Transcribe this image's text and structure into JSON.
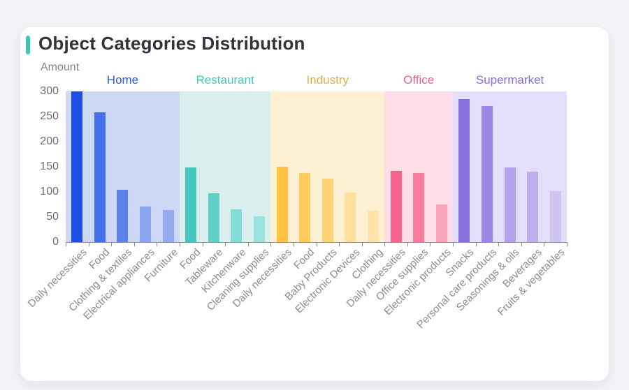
{
  "header": {
    "title": "Object Categories Distribution",
    "accent_color": "#3ec6bc"
  },
  "page": {
    "background_color": "#f2f3f6",
    "card_color": "#ffffff"
  },
  "chart_data": {
    "type": "bar",
    "title": "Object Categories Distribution",
    "xlabel": "",
    "ylabel": "Amount",
    "ylim": [
      0,
      300
    ],
    "yticks": [
      0,
      50,
      100,
      150,
      200,
      250,
      300
    ],
    "grid": false,
    "legend_position": "none",
    "axis_color": "#8f8f8f",
    "groups": [
      {
        "name": "Home",
        "label_color": "#3355e0",
        "band_color": "#ccd8f4",
        "bars": [
          {
            "label": "Daily necessities",
            "value": 300,
            "color": "#1d4fe3"
          },
          {
            "label": "Food",
            "value": 258,
            "color": "#4170e8"
          },
          {
            "label": "Clothing & textiles",
            "value": 104,
            "color": "#5b82ea"
          },
          {
            "label": "Electrical appliances",
            "value": 71,
            "color": "#8ba4f0"
          },
          {
            "label": "Furniture",
            "value": 64,
            "color": "#93aaf1"
          }
        ]
      },
      {
        "name": "Restaurant",
        "label_color": "#45c8ba",
        "band_color": "#d9f0ee",
        "bars": [
          {
            "label": "Food",
            "value": 148,
            "color": "#46c6bc"
          },
          {
            "label": "Tableware",
            "value": 97,
            "color": "#63d0c8"
          },
          {
            "label": "Kitchenware",
            "value": 65,
            "color": "#84dcd6"
          },
          {
            "label": "Cleaning supplies",
            "value": 51,
            "color": "#9ce2dd"
          }
        ]
      },
      {
        "name": "Industry",
        "label_color": "#e8ab3e",
        "band_color": "#fdf0d3",
        "bars": [
          {
            "label": "Daily necessities",
            "value": 150,
            "color": "#ffc242"
          },
          {
            "label": "Food",
            "value": 138,
            "color": "#ffcb5e"
          },
          {
            "label": "Baby Products",
            "value": 126,
            "color": "#ffd478"
          },
          {
            "label": "Electronic Devices",
            "value": 99,
            "color": "#ffdf9b"
          },
          {
            "label": "Clothing",
            "value": 63,
            "color": "#ffe3a8"
          }
        ]
      },
      {
        "name": "Office",
        "label_color": "#f0618e",
        "band_color": "#fcdde8",
        "bars": [
          {
            "label": "Daily necessities",
            "value": 142,
            "color": "#f9638f"
          },
          {
            "label": "Office supplies",
            "value": 138,
            "color": "#fa7ba0"
          },
          {
            "label": "Electronic products",
            "value": 75,
            "color": "#fba5bd"
          }
        ]
      },
      {
        "name": "Supermarket",
        "label_color": "#8a6ae0",
        "band_color": "#e3defa",
        "bars": [
          {
            "label": "Snacks",
            "value": 285,
            "color": "#8a70dd"
          },
          {
            "label": "Personal care products",
            "value": 271,
            "color": "#9b86e3"
          },
          {
            "label": "Seasonings & oils",
            "value": 148,
            "color": "#b3a2ea"
          },
          {
            "label": "Beverages",
            "value": 140,
            "color": "#bdaeec"
          },
          {
            "label": "Fruits & vegetables",
            "value": 102,
            "color": "#cfc3f2"
          }
        ]
      }
    ]
  }
}
